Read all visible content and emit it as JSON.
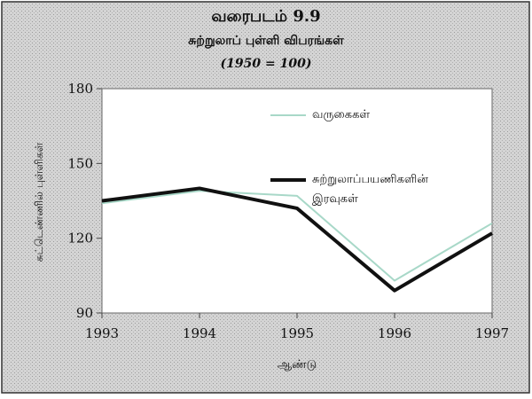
{
  "chart_data": {
    "type": "line",
    "title": "வரைபடம் 9.9",
    "subtitle": "சுற்றுலாப் புள்ளி விபரங்கள்",
    "note": "(1950 = 100)",
    "x_label": "ஆண்டு",
    "y_label": "சுட்டெண்ணில் புள்ளிகள்",
    "x": [
      1993,
      1994,
      1995,
      1996,
      1997
    ],
    "xlim": [
      1993,
      1997
    ],
    "xticks": [
      1993,
      1994,
      1995,
      1996,
      1997
    ],
    "ylim": [
      90,
      180
    ],
    "yticks": [
      90,
      120,
      150,
      180
    ],
    "series": [
      {
        "name": "வருகைகள்",
        "color": "#a8d8c8",
        "values": [
          134,
          139,
          137,
          103,
          126
        ]
      },
      {
        "name": "சுற்றுலாப்பயணிகளின் இரவுகள்",
        "color": "#111111",
        "values": [
          135,
          140,
          132,
          99,
          122
        ]
      }
    ]
  }
}
